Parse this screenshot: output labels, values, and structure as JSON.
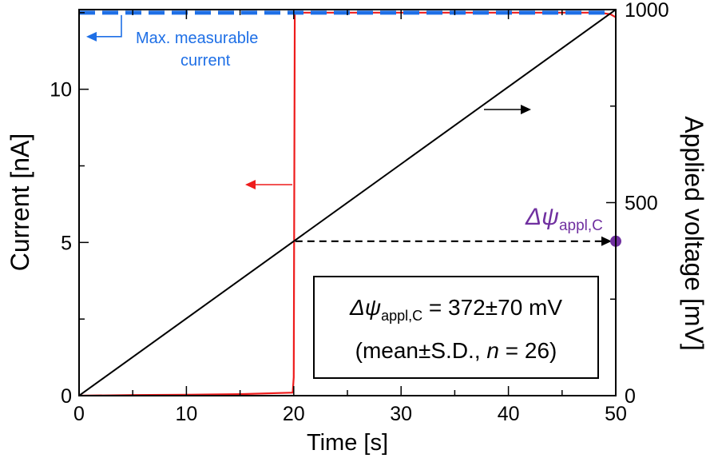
{
  "chart_data": {
    "type": "line",
    "xlabel": "Time [s]",
    "ylabel": "Current [nA]",
    "y2label": "Applied voltage [mV]",
    "xlim": [
      0,
      50
    ],
    "ylim": [
      0,
      12.6
    ],
    "y2lim": [
      0,
      1000
    ],
    "x_ticks": [
      "0",
      "10",
      "20",
      "30",
      "40",
      "50"
    ],
    "y_ticks": [
      "0",
      "5",
      "10"
    ],
    "y2_ticks": [
      "0",
      "500",
      "1000"
    ],
    "grid": false,
    "series": [
      {
        "axis": "left",
        "color": "#ee1c1c",
        "x": [
          0,
          5,
          10,
          15,
          19.9,
          20.0,
          20.1,
          25,
          30,
          40,
          48.5,
          49.5,
          50
        ],
        "y": [
          0,
          0.02,
          0.03,
          0.05,
          0.1,
          0.6,
          12.5,
          12.5,
          12.5,
          12.5,
          12.5,
          12.45,
          12.35
        ]
      },
      {
        "axis": "right",
        "color": "#000000",
        "x": [
          0,
          50
        ],
        "y": [
          0,
          1000
        ]
      }
    ],
    "max_current": {
      "value": 12.5,
      "color": "#1e6fe6",
      "label_line1": "Max. measurable",
      "label_line2": "current"
    },
    "threshold": {
      "x": 20,
      "y2": 400,
      "color": "#7030a0"
    },
    "point_label": {
      "main": "Δψ",
      "sub": "appl,C"
    },
    "annotation": {
      "line1_main": "Δψ",
      "line1_sub": "appl,C",
      "line1_rest": " = 372±70 mV",
      "line2_pre": "(mean±S.D., ",
      "line2_n": "n",
      "line2_post": " = 26)"
    }
  }
}
